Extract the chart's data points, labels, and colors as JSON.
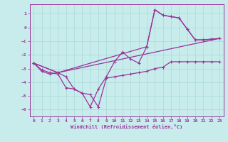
{
  "xlabel": "Windchill (Refroidissement éolien,°C)",
  "bg_color": "#c8ecec",
  "grid_color": "#a8d8d8",
  "line_color": "#993399",
  "xlim": [
    -0.5,
    23.5
  ],
  "ylim": [
    -6.5,
    1.7
  ],
  "xticks": [
    0,
    1,
    2,
    3,
    4,
    5,
    6,
    7,
    8,
    9,
    10,
    11,
    12,
    13,
    14,
    15,
    16,
    17,
    18,
    19,
    20,
    21,
    22,
    23
  ],
  "yticks": [
    1,
    0,
    -1,
    -2,
    -3,
    -4,
    -5,
    -6
  ],
  "line1_x": [
    0,
    1,
    2,
    3,
    4,
    5,
    6,
    7,
    8,
    9,
    10,
    11,
    12,
    13,
    14,
    15,
    16,
    17,
    18,
    19,
    20,
    21,
    22,
    23
  ],
  "line1_y": [
    -2.6,
    -3.2,
    -3.4,
    -3.3,
    -3.6,
    -4.5,
    -4.8,
    -5.8,
    -4.5,
    -3.6,
    -2.5,
    -1.8,
    -2.3,
    -2.6,
    -1.4,
    1.3,
    0.9,
    0.8,
    0.7,
    -0.1,
    -0.9,
    -0.9,
    -0.85,
    -0.8
  ],
  "line2_x": [
    0,
    1,
    2,
    3,
    4,
    5,
    6,
    7,
    8,
    9,
    10,
    11,
    12,
    13,
    14,
    15,
    16,
    17,
    18,
    19,
    20,
    21,
    22,
    23
  ],
  "line2_y": [
    -2.6,
    -3.1,
    -3.3,
    -3.4,
    -4.4,
    -4.5,
    -4.8,
    -4.9,
    -5.8,
    -3.7,
    -3.6,
    -3.5,
    -3.4,
    -3.3,
    -3.2,
    -3.0,
    -2.9,
    -2.5,
    -2.5,
    -2.5,
    -2.5,
    -2.5,
    -2.5,
    -2.5
  ],
  "line3_x": [
    0,
    3,
    14,
    15,
    16,
    17,
    18,
    19,
    20,
    21,
    22,
    23
  ],
  "line3_y": [
    -2.6,
    -3.3,
    -1.4,
    1.3,
    0.9,
    0.8,
    0.7,
    -0.1,
    -0.9,
    -0.9,
    -0.85,
    -0.8
  ],
  "line4_x": [
    0,
    3,
    23
  ],
  "line4_y": [
    -2.6,
    -3.3,
    -0.8
  ]
}
